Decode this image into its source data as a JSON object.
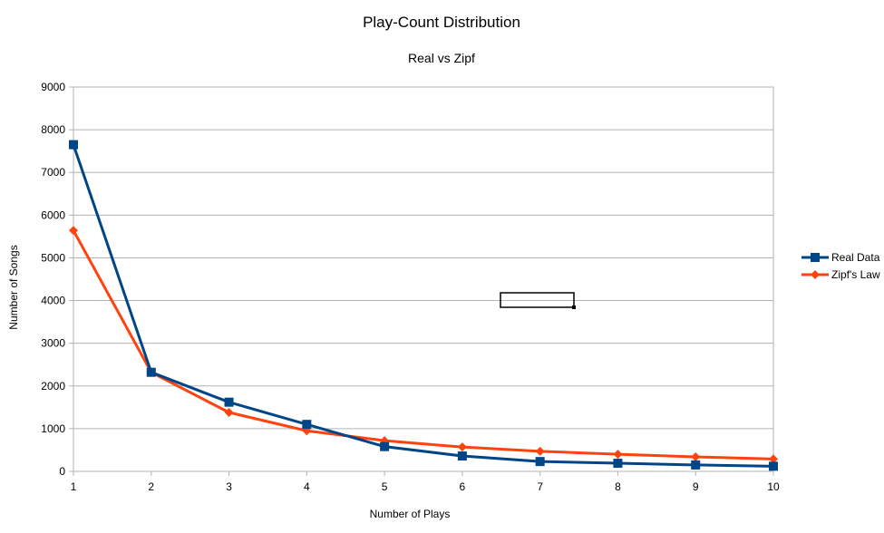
{
  "chart_data": {
    "type": "line",
    "title": "Play-Count Distribution",
    "subtitle": "Real vs Zipf",
    "xlabel": "Number of Plays",
    "ylabel": "Number of Songs",
    "x": [
      1,
      2,
      3,
      4,
      5,
      6,
      7,
      8,
      9,
      10
    ],
    "ylim": [
      0,
      9000
    ],
    "yticks": [
      0,
      1000,
      2000,
      3000,
      4000,
      5000,
      6000,
      7000,
      8000,
      9000
    ],
    "grid": true,
    "legend_position": "right",
    "series": [
      {
        "name": "Real Data",
        "color": "#004586",
        "marker": "square",
        "values": [
          7650,
          2320,
          1620,
          1100,
          580,
          360,
          230,
          190,
          150,
          120
        ]
      },
      {
        "name": "Zipf's Law",
        "color": "#ff420e",
        "marker": "diamond",
        "values": [
          5640,
          2320,
          1380,
          950,
          720,
          570,
          470,
          400,
          340,
          290
        ]
      }
    ]
  }
}
